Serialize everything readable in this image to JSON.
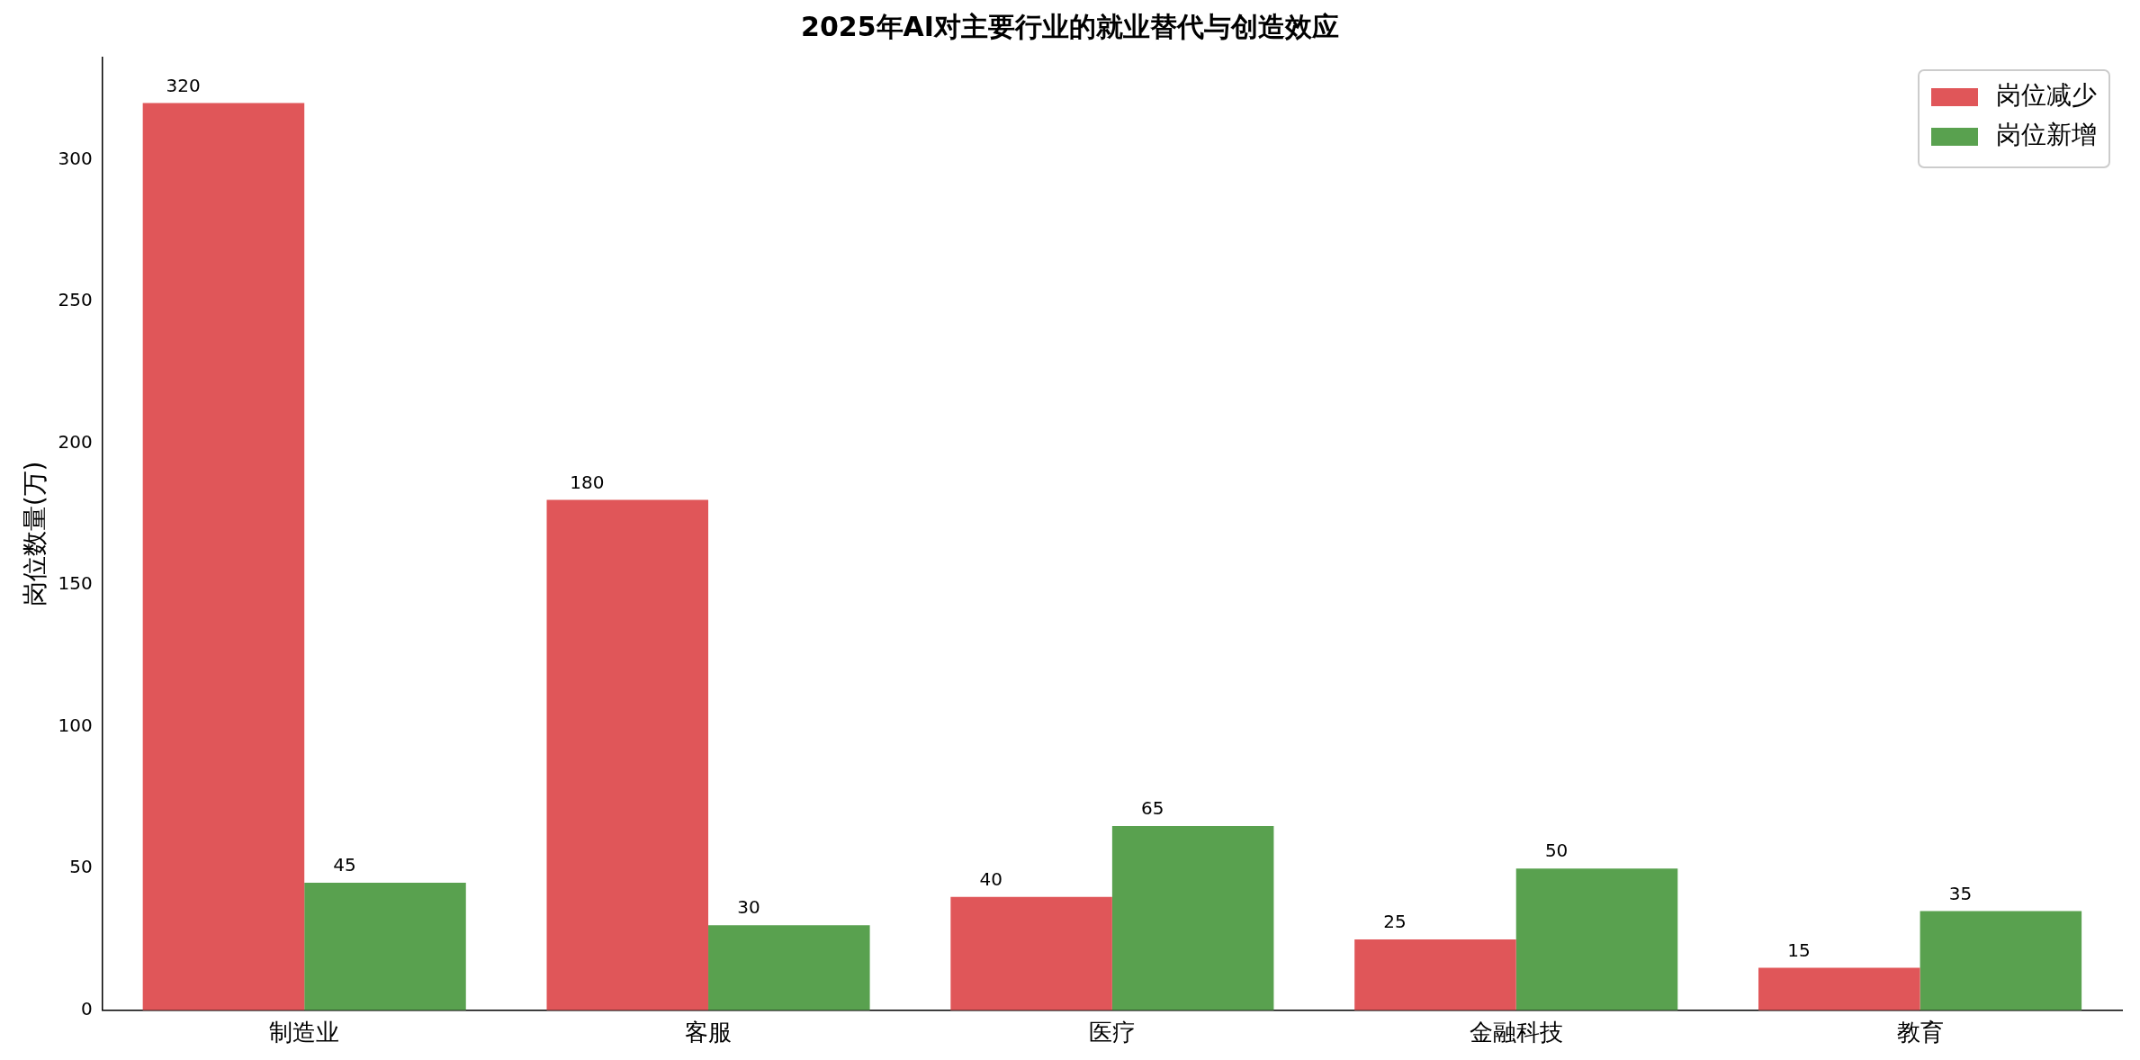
{
  "chart_data": {
    "type": "bar",
    "title": "2025年AI对主要行业的就业替代与创造效应",
    "ylabel": "岗位数量(万)",
    "categories": [
      "制造业",
      "客服",
      "医疗",
      "金融科技",
      "教育"
    ],
    "series": [
      {
        "name": "岗位减少",
        "color": "#e05659",
        "values": [
          320,
          180,
          40,
          25,
          15
        ]
      },
      {
        "name": "岗位新增",
        "color": "#59a14f",
        "values": [
          45,
          30,
          65,
          50,
          35
        ]
      }
    ],
    "ylim": [
      0,
      336
    ],
    "yticks": [
      0,
      50,
      100,
      150,
      200,
      250,
      300
    ],
    "grid": false,
    "legend": "top right",
    "data_labels": true
  }
}
